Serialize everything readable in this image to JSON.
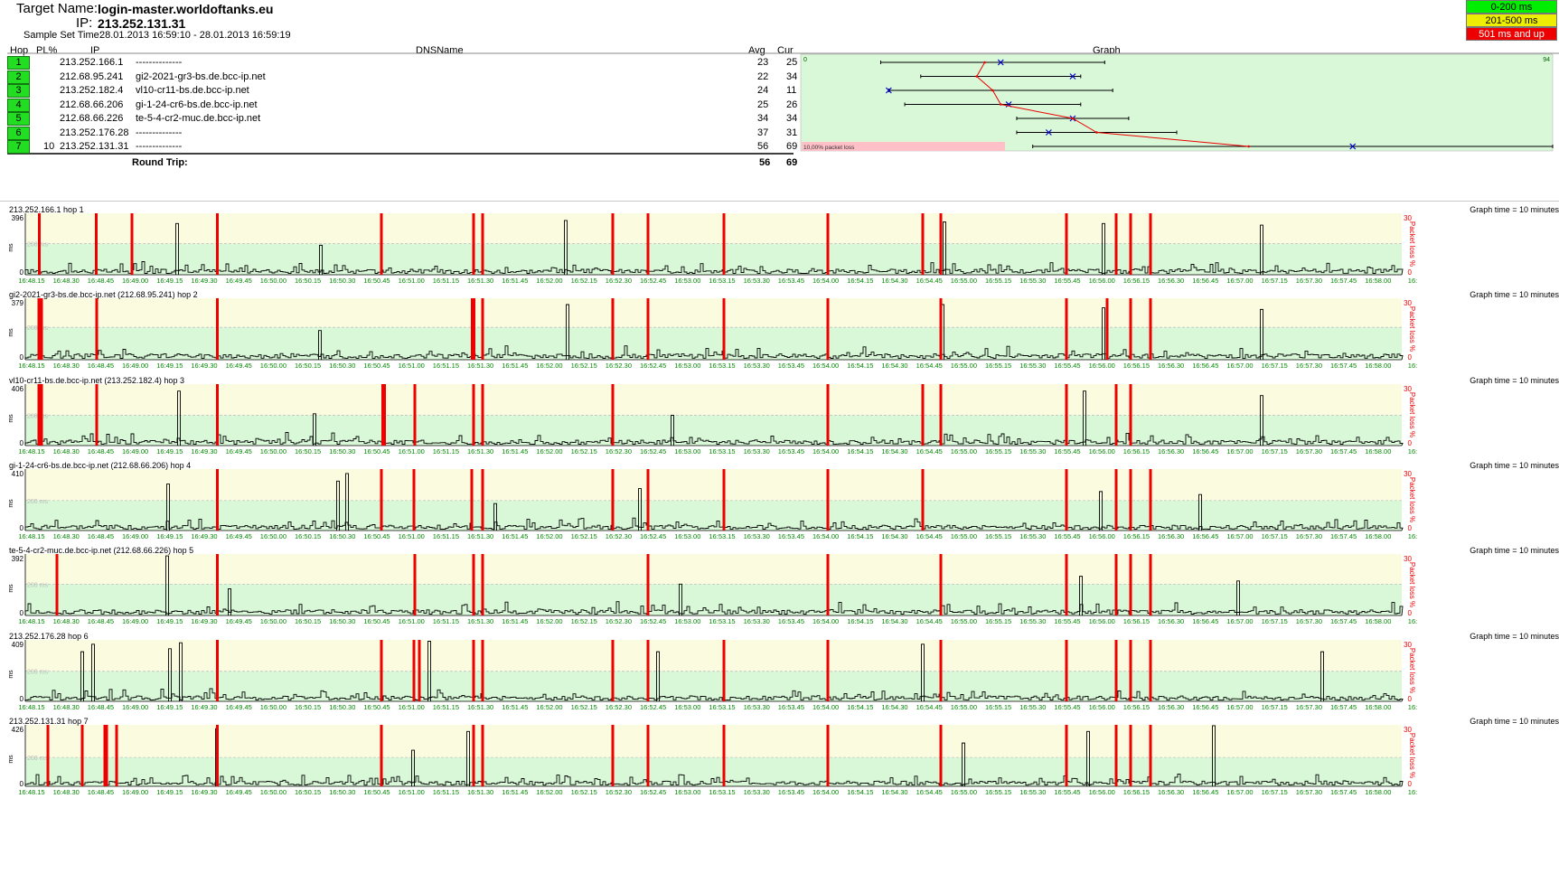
{
  "header": {
    "target_label": "Target Name:",
    "target_value": "login-master.worldoftanks.eu",
    "ip_label": "IP:",
    "ip_value": "213.252.131.31",
    "sample_label": "Sample Set Time:",
    "sample_value": "28.01.2013 16:59:10 - 28.01.2013 16:59:19"
  },
  "legend": [
    {
      "label": "0-200 ms",
      "color": "#00ee00"
    },
    {
      "label": "201-500 ms",
      "color": "#eeee00"
    },
    {
      "label": "501 ms and up",
      "color": "#ee0000"
    }
  ],
  "columns": {
    "hop": "Hop",
    "pl": "PL%",
    "ip": "IP",
    "dns": "DNSName",
    "avg": "Avg",
    "cur": "Cur",
    "graph": "Graph"
  },
  "hops": [
    {
      "hop": "1",
      "pl": "",
      "ip": "213.252.166.1",
      "dns": "--------------",
      "avg": "23",
      "cur": "25",
      "min": 10,
      "max": 38
    },
    {
      "hop": "2",
      "pl": "",
      "ip": "212.68.95.241",
      "dns": "gi2-2021-gr3-bs.de.bcc-ip.net",
      "avg": "22",
      "cur": "34",
      "min": 15,
      "max": 35
    },
    {
      "hop": "3",
      "pl": "",
      "ip": "213.252.182.4",
      "dns": "vl10-cr11-bs.de.bcc-ip.net",
      "avg": "24",
      "cur": "11",
      "min": 11,
      "max": 39
    },
    {
      "hop": "4",
      "pl": "",
      "ip": "212.68.66.206",
      "dns": "gi-1-24-cr6-bs.de.bcc-ip.net",
      "avg": "25",
      "cur": "26",
      "min": 13,
      "max": 35
    },
    {
      "hop": "5",
      "pl": "",
      "ip": "212.68.66.226",
      "dns": "te-5-4-cr2-muc.de.bcc-ip.net",
      "avg": "34",
      "cur": "34",
      "min": 27,
      "max": 41
    },
    {
      "hop": "6",
      "pl": "",
      "ip": "213.252.176.28",
      "dns": "--------------",
      "avg": "37",
      "cur": "31",
      "min": 27,
      "max": 47
    },
    {
      "hop": "7",
      "pl": "10",
      "ip": "213.252.131.31",
      "dns": "--------------",
      "avg": "56",
      "cur": "69",
      "min": 29,
      "max": 94
    }
  ],
  "graph_scale": {
    "min_label": "0",
    "max_label": "94",
    "max": 94,
    "loss_label": "10,00% packet loss"
  },
  "round_trip": {
    "label": "Round Trip:",
    "avg": "56",
    "cur": "69"
  },
  "time_ticks": [
    "16:48.15",
    "16:48.30",
    "16:48.45",
    "16:49.00",
    "16:49.15",
    "16:49.30",
    "16:49.45",
    "16:50.00",
    "16:50.15",
    "16:50.30",
    "16:50.45",
    "16:51.00",
    "16:51.15",
    "16:51.30",
    "16:51.45",
    "16:52.00",
    "16:52.15",
    "16:52.30",
    "16:52.45",
    "16:53.00",
    "16:53.15",
    "16:53.30",
    "16:53.45",
    "16:54.00",
    "16:54.15",
    "16:54.30",
    "16:54.45",
    "16:55.00",
    "16:55.15",
    "16:55.30",
    "16:55.45",
    "16:56.00",
    "16:56.15",
    "16:56.30",
    "16:56.45",
    "16:57.00",
    "16:57.15",
    "16:57.30",
    "16:57.45",
    "16:58.00",
    "16:"
  ],
  "panels_common": {
    "graph_time": "Graph time = 10 minutes",
    "y_unit": "ms",
    "ms200": "200 ms",
    "loss_axis": "Packet loss %",
    "loss_top": "30",
    "loss_bottom": "0",
    "y_min": "0"
  },
  "panels": [
    {
      "title": "213.252.166.1 hop 1",
      "ymax": "396",
      "ymax_num": 396,
      "loss_at": [
        15.5,
        78.5,
        118,
        212.5,
        394,
        496,
        506,
        650,
        689,
        773,
        888,
        993,
        1013,
        1152,
        1207,
        1223,
        1245
      ],
      "spikes": [
        {
          "x": 168,
          "v": 330
        },
        {
          "x": 327,
          "v": 190
        },
        {
          "x": 598,
          "v": 350
        },
        {
          "x": 1017,
          "v": 340
        },
        {
          "x": 1193,
          "v": 330
        },
        {
          "x": 1368,
          "v": 320
        }
      ]
    },
    {
      "title": "gi2-2021-gr3-bs.de.bcc-ip.net (212.68.95.241) hop 2",
      "ymax": "379",
      "ymax_num": 379,
      "loss_at": [
        15,
        18,
        79,
        212.5,
        494.5,
        496.5,
        506,
        650,
        689,
        773,
        888,
        1013,
        1152,
        1197,
        1223,
        1245
      ],
      "spikes": [
        {
          "x": 326,
          "v": 180
        },
        {
          "x": 600,
          "v": 340
        },
        {
          "x": 1015,
          "v": 340
        },
        {
          "x": 1193,
          "v": 320
        },
        {
          "x": 1368,
          "v": 310
        }
      ]
    },
    {
      "title": "vl10-cr11-bs.de.bcc-ip.net (213.252.182.4) hop 3",
      "ymax": "406",
      "ymax_num": 406,
      "loss_at": [
        15,
        18,
        79,
        212.5,
        395.5,
        397.5,
        431,
        496,
        506,
        650,
        888,
        993,
        1013,
        1152,
        1207,
        1223
      ],
      "spikes": [
        {
          "x": 170,
          "v": 360
        },
        {
          "x": 320,
          "v": 210
        },
        {
          "x": 716,
          "v": 200
        },
        {
          "x": 1172,
          "v": 360
        },
        {
          "x": 1368,
          "v": 330
        }
      ]
    },
    {
      "title": "gi-1-24-cr6-bs.de.bcc-ip.net (212.68.66.206) hop 4",
      "ymax": "410",
      "ymax_num": 410,
      "loss_at": [
        212.5,
        394,
        430,
        494,
        506,
        650,
        689,
        773,
        888,
        993,
        1152,
        1207,
        1223,
        1245
      ],
      "spikes": [
        {
          "x": 158,
          "v": 310
        },
        {
          "x": 346,
          "v": 330
        },
        {
          "x": 356,
          "v": 380
        },
        {
          "x": 520,
          "v": 180
        },
        {
          "x": 680,
          "v": 280
        },
        {
          "x": 1190,
          "v": 260
        },
        {
          "x": 1300,
          "v": 240
        }
      ]
    },
    {
      "title": "te-5-4-cr2-muc.de.bcc-ip.net (212.68.66.226) hop 5",
      "ymax": "392",
      "ymax_num": 392,
      "loss_at": [
        35,
        212.5,
        431,
        496,
        506,
        689,
        888,
        1013,
        1152,
        1207,
        1223,
        1245
      ],
      "spikes": [
        {
          "x": 157,
          "v": 380
        },
        {
          "x": 226,
          "v": 170
        },
        {
          "x": 725,
          "v": 200
        },
        {
          "x": 1168,
          "v": 250
        },
        {
          "x": 1342,
          "v": 220
        }
      ]
    },
    {
      "title": "213.252.176.28 hop 6",
      "ymax": "409",
      "ymax_num": 409,
      "loss_at": [
        212.5,
        394,
        430,
        436,
        496,
        506,
        650,
        689,
        773,
        888,
        1013,
        1152,
        1207,
        1223,
        1245
      ],
      "spikes": [
        {
          "x": 63,
          "v": 330
        },
        {
          "x": 75,
          "v": 380
        },
        {
          "x": 160,
          "v": 350
        },
        {
          "x": 172,
          "v": 390
        },
        {
          "x": 447,
          "v": 400
        },
        {
          "x": 700,
          "v": 330
        },
        {
          "x": 993,
          "v": 380
        },
        {
          "x": 1435,
          "v": 330
        }
      ]
    },
    {
      "title": "213.252.131.31 hop 7",
      "ymax": "426",
      "ymax_num": 426,
      "loss_at": [
        25,
        63,
        88,
        90,
        101,
        212.5,
        394,
        496,
        506,
        650,
        689,
        773,
        888,
        1013,
        1152,
        1207,
        1223,
        1245
      ],
      "spikes": [
        {
          "x": 212,
          "v": 400
        },
        {
          "x": 429,
          "v": 250
        },
        {
          "x": 490,
          "v": 380
        },
        {
          "x": 1038,
          "v": 300
        },
        {
          "x": 1176,
          "v": 380
        },
        {
          "x": 1315,
          "v": 420
        }
      ]
    }
  ]
}
